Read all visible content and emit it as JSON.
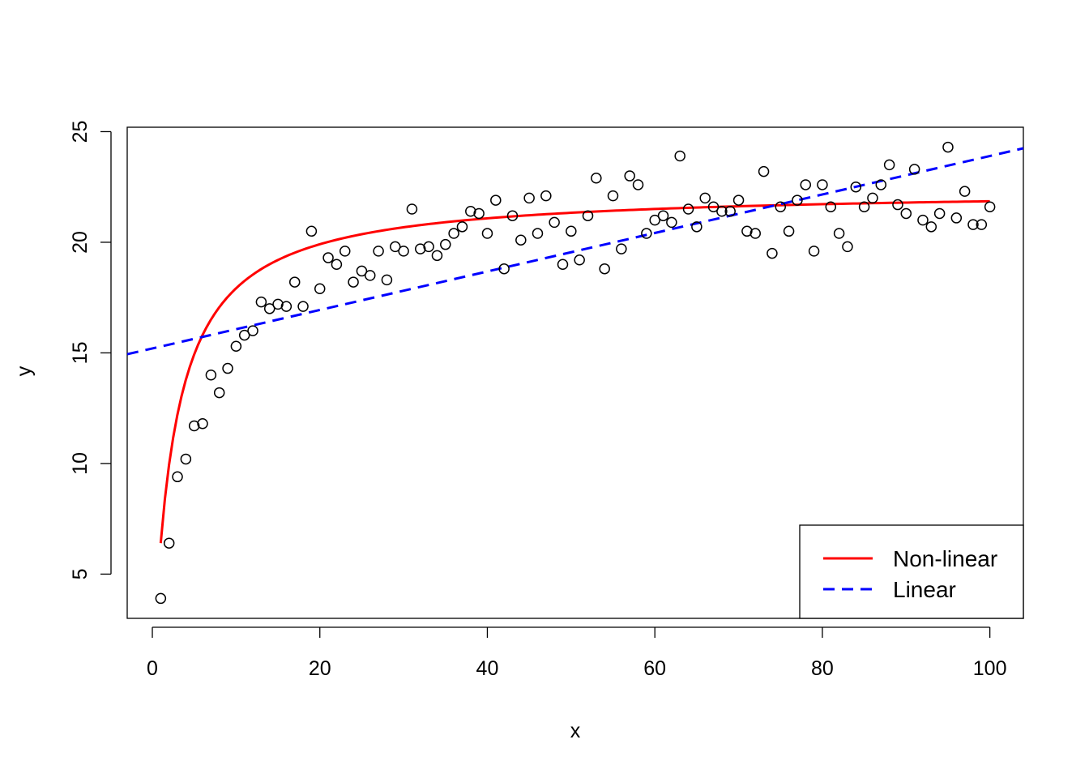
{
  "chart_data": {
    "type": "scatter",
    "title": "",
    "xlabel": "x",
    "ylabel": "y",
    "xlim": [
      -3,
      104
    ],
    "ylim": [
      3,
      25.2
    ],
    "xticks": [
      0,
      20,
      40,
      60,
      80,
      100
    ],
    "yticks": [
      5,
      10,
      15,
      20,
      25
    ],
    "grid": false,
    "legend_position": "bottom-right",
    "points": {
      "x": [
        1,
        2,
        3,
        4,
        5,
        6,
        7,
        8,
        9,
        10,
        11,
        12,
        13,
        14,
        15,
        16,
        17,
        18,
        19,
        20,
        21,
        22,
        23,
        24,
        25,
        26,
        27,
        28,
        29,
        30,
        31,
        32,
        33,
        34,
        35,
        36,
        37,
        38,
        39,
        40,
        41,
        42,
        43,
        44,
        45,
        46,
        47,
        48,
        49,
        50,
        51,
        52,
        53,
        54,
        55,
        56,
        57,
        58,
        59,
        60,
        61,
        62,
        63,
        64,
        65,
        66,
        67,
        68,
        69,
        70,
        71,
        72,
        73,
        74,
        75,
        76,
        77,
        78,
        79,
        80,
        81,
        82,
        83,
        84,
        85,
        86,
        87,
        88,
        89,
        90,
        91,
        92,
        93,
        94,
        95,
        96,
        97,
        98,
        99,
        100
      ],
      "y": [
        3.9,
        6.4,
        9.4,
        10.2,
        11.7,
        11.8,
        14.0,
        13.2,
        14.3,
        15.3,
        15.8,
        16.0,
        17.3,
        17.0,
        17.2,
        17.1,
        18.2,
        17.1,
        20.5,
        17.9,
        19.3,
        19.0,
        19.6,
        18.2,
        18.7,
        18.5,
        19.6,
        18.3,
        19.8,
        19.6,
        21.5,
        19.7,
        19.8,
        19.4,
        19.9,
        20.4,
        20.7,
        21.4,
        21.3,
        20.4,
        21.9,
        18.8,
        21.2,
        20.1,
        22.0,
        20.4,
        22.1,
        20.9,
        19.0,
        20.5,
        19.2,
        21.2,
        22.9,
        18.8,
        22.1,
        19.7,
        23.0,
        22.6,
        20.4,
        21.0,
        21.2,
        20.9,
        23.9,
        21.5,
        20.7,
        22.0,
        21.6,
        21.4,
        21.4,
        21.9,
        20.5,
        20.4,
        23.2,
        19.5,
        21.6,
        20.5,
        21.9,
        22.6,
        19.6,
        22.6,
        21.6,
        20.4,
        19.8,
        22.5,
        21.6,
        22.0,
        22.6,
        23.5,
        21.7,
        21.3,
        23.3,
        21.0,
        20.7,
        21.3,
        24.3,
        21.1,
        22.3,
        20.8,
        20.8,
        21.6
      ]
    },
    "series": [
      {
        "name": "Non-linear",
        "model": "a*x/(b+x)",
        "a": 22.4,
        "b": 2.5,
        "x_range": [
          1,
          100
        ],
        "color": "#ff0000",
        "style": "solid"
      },
      {
        "name": "Linear",
        "model": "intercept + slope*x",
        "intercept": 15.2,
        "slope": 0.087,
        "color": "#0000ff",
        "style": "dashed"
      }
    ]
  }
}
